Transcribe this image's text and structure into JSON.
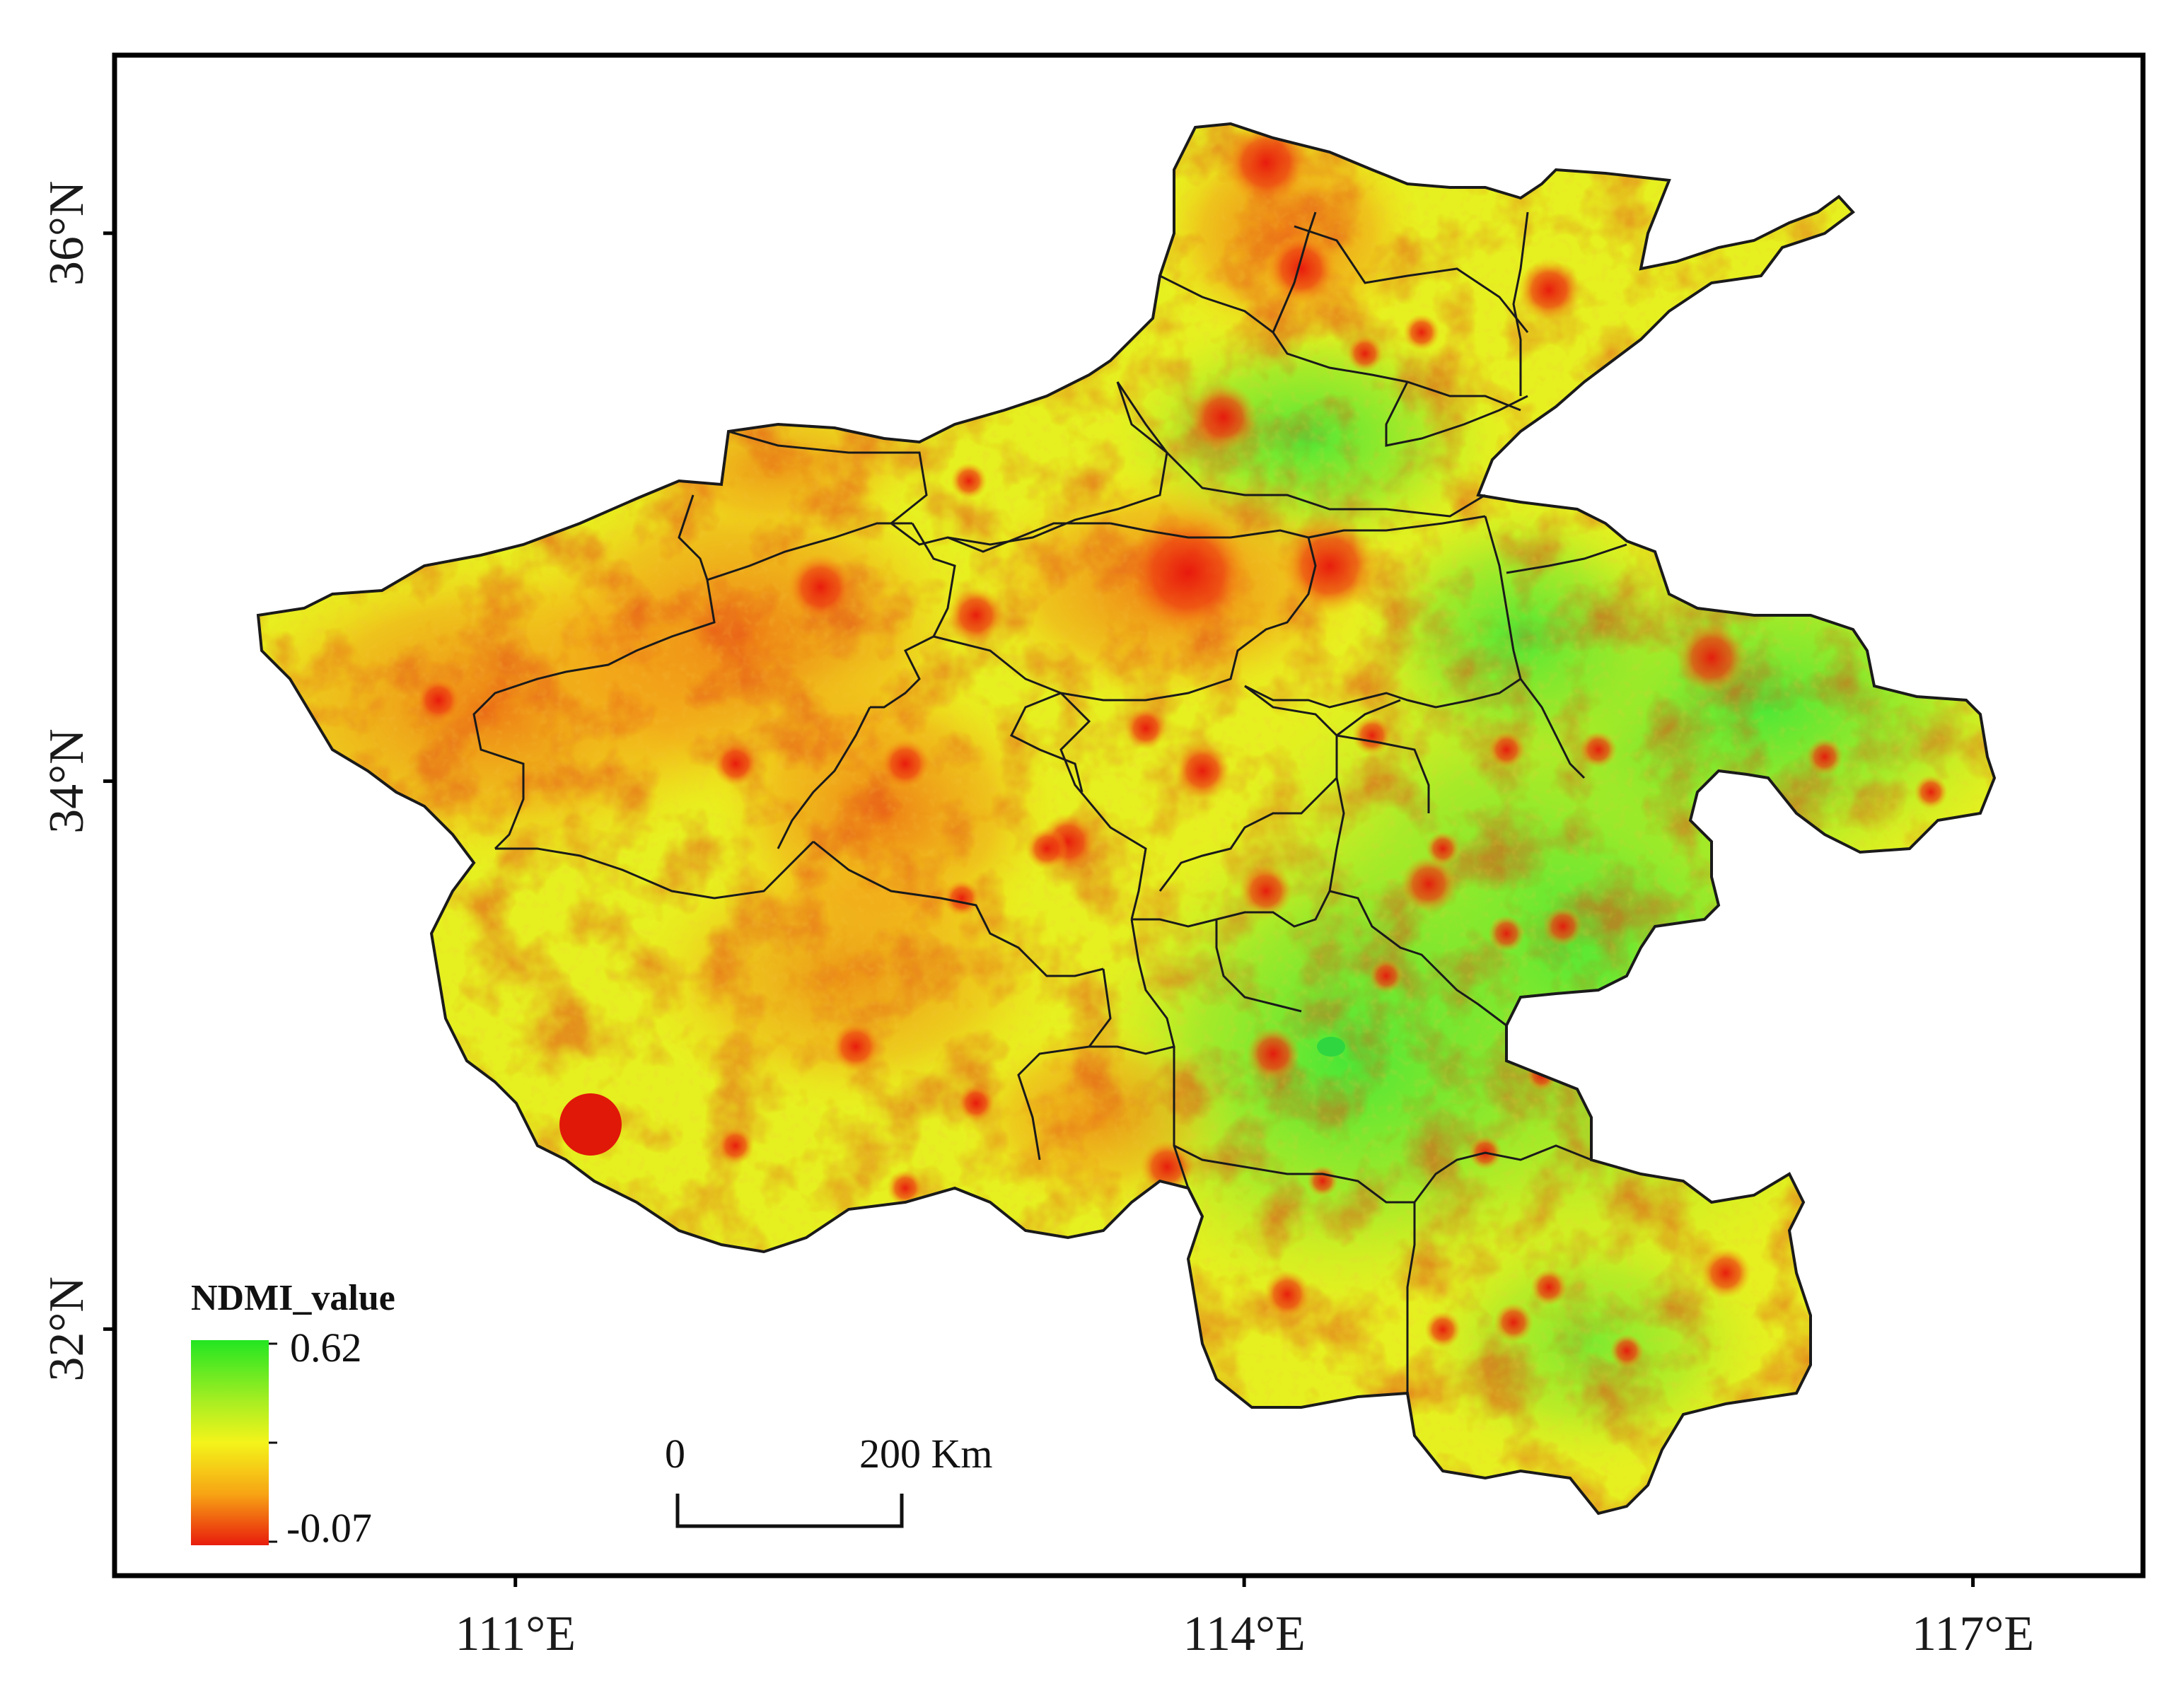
{
  "map": {
    "variable": "NDMI",
    "extent": {
      "lon": [
        109.35,
        117.7
      ],
      "lat": [
        31.1,
        36.65
      ]
    },
    "lat_ticks": [
      {
        "value": 36,
        "label": "36°N"
      },
      {
        "value": 34,
        "label": "34°N"
      },
      {
        "value": 32,
        "label": "32°N"
      }
    ],
    "lon_ticks": [
      {
        "value": 111,
        "label": "111°E"
      },
      {
        "value": 114,
        "label": "114°E"
      },
      {
        "value": 117,
        "label": "117°E"
      }
    ],
    "colors": {
      "high": "#33e633",
      "mid": "#f2f21a",
      "low": "#e81c0c",
      "boundary": "#1a1a1a"
    }
  },
  "legend": {
    "title": "NDMI_value",
    "max_label": "0.62",
    "min_label": "-0.07",
    "max": 0.62,
    "min": -0.07,
    "gradient": [
      "#22e622",
      "#a8ee22",
      "#f4f41a",
      "#f7a414",
      "#e81c0c"
    ]
  },
  "scale_bar": {
    "start_label": "0",
    "end_label": "200 Km",
    "length_km": 200
  }
}
